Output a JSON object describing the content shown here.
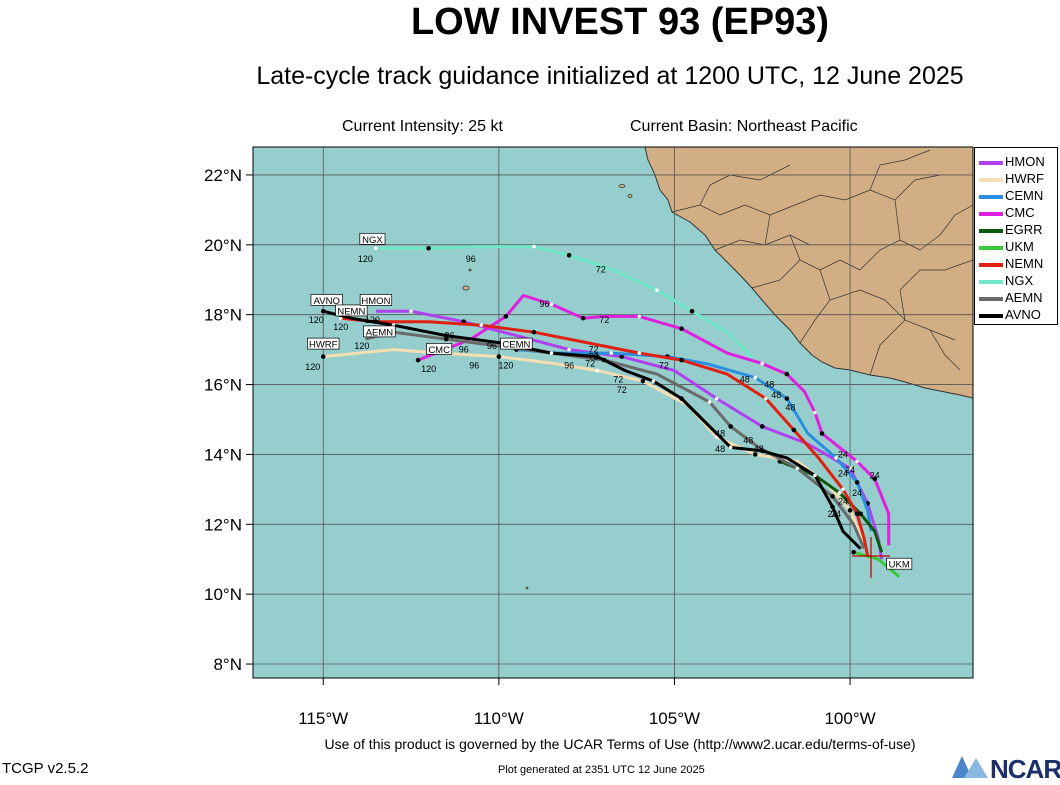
{
  "title": "LOW INVEST 93 (EP93)",
  "subtitle": "Late-cycle track guidance initialized at 1200 UTC, 12 June 2025",
  "info": {
    "intensity": "Current Intensity: 25 kt",
    "basin": "Current Basin: Northeast Pacific"
  },
  "footer": {
    "terms": "Use of this product is governed by the UCAR Terms of Use (http://www2.ucar.edu/terms-of-use)",
    "version": "TCGP v2.5.2",
    "generated": "Plot generated at 2351 UTC   12 June 2025",
    "logo": "NCAR"
  },
  "colors": {
    "ocean": "#96cece",
    "land": "#d2ae85",
    "grid": "#555555"
  },
  "chart_data": {
    "type": "line",
    "xlim": [
      -117,
      -96.5
    ],
    "ylim": [
      7.6,
      22.8
    ],
    "xticks": [
      -115,
      -110,
      -105,
      -100
    ],
    "xtick_labels": [
      "115°W",
      "110°W",
      "105°W",
      "100°W"
    ],
    "yticks": [
      8,
      10,
      12,
      14,
      16,
      18,
      20,
      22
    ],
    "ytick_labels": [
      "8°N",
      "10°N",
      "12°N",
      "14°N",
      "16°N",
      "18°N",
      "20°N",
      "22°N"
    ],
    "grid": true,
    "legend_position": "right",
    "series": [
      {
        "name": "HMON",
        "color": "#b040f0",
        "lon": [
          -99.1,
          -99.2,
          -99.5,
          -100.0,
          -101.2,
          -102.5,
          -103.8,
          -105.0,
          -106.5,
          -108.0,
          -109.5,
          -111.0,
          -112.5,
          -113.5
        ],
        "lat": [
          11.0,
          11.6,
          12.6,
          13.6,
          14.3,
          14.8,
          15.6,
          16.4,
          16.8,
          17.0,
          17.4,
          17.8,
          18.1,
          18.1
        ]
      },
      {
        "name": "HWRF",
        "color": "#f5deb3",
        "lon": [
          -99.6,
          -99.7,
          -100.0,
          -100.6,
          -101.5,
          -102.7,
          -103.8,
          -104.6,
          -105.9,
          -107.2,
          -108.4,
          -110.0,
          -111.7,
          -113.0,
          -115.0
        ],
        "lat": [
          11.3,
          11.7,
          12.4,
          13.1,
          13.8,
          14.0,
          14.5,
          15.4,
          16.1,
          16.4,
          16.6,
          16.8,
          16.9,
          17.0,
          16.8
        ]
      },
      {
        "name": "CEMN",
        "color": "#2a8fe0",
        "lon": [
          -99.4,
          -99.5,
          -99.8,
          -100.4,
          -101.2,
          -101.8,
          -102.7,
          -104.1,
          -105.2,
          -106.8,
          -108.3,
          -109.5
        ],
        "lat": [
          11.8,
          12.4,
          13.2,
          13.9,
          14.6,
          15.6,
          16.2,
          16.6,
          16.8,
          16.9,
          16.9,
          17.0
        ]
      },
      {
        "name": "CMC",
        "color": "#e020e0",
        "lon": [
          -98.9,
          -98.9,
          -99.3,
          -99.8,
          -100.3,
          -100.8,
          -101.0,
          -101.3,
          -101.8,
          -102.5,
          -103.5,
          -104.8,
          -106.0,
          -107.0,
          -107.6,
          -108.5,
          -109.3,
          -109.8,
          -110.8,
          -111.8,
          -112.3
        ],
        "lat": [
          11.4,
          12.3,
          13.3,
          13.8,
          14.2,
          14.6,
          15.2,
          15.8,
          16.3,
          16.6,
          16.9,
          17.6,
          17.95,
          17.95,
          17.9,
          18.3,
          18.55,
          17.95,
          17.3,
          16.9,
          16.7
        ]
      },
      {
        "name": "EGRR",
        "color": "#0a5a0a",
        "lon": [
          -99.1,
          -99.3,
          -99.7,
          -100.3,
          -101.0,
          -102.0
        ],
        "lat": [
          11.2,
          11.8,
          12.3,
          12.9,
          13.4,
          13.8
        ]
      },
      {
        "name": "UKM",
        "color": "#3cc83c",
        "lon": [
          -98.6,
          -99.2,
          -99.9
        ],
        "lat": [
          10.5,
          11.0,
          11.2
        ]
      },
      {
        "name": "NEMN",
        "color": "#e02010",
        "lon": [
          -99.5,
          -99.6,
          -99.8,
          -100.2,
          -100.9,
          -101.6,
          -102.4,
          -103.5,
          -104.8,
          -106.0,
          -107.5,
          -109.0,
          -110.5,
          -112.0,
          -113.5,
          -114.5
        ],
        "lat": [
          11.1,
          11.6,
          12.3,
          13.0,
          13.9,
          14.7,
          15.6,
          16.3,
          16.7,
          16.9,
          17.2,
          17.5,
          17.7,
          17.8,
          17.8,
          17.9
        ]
      },
      {
        "name": "NGX",
        "color": "#70e8c8",
        "lon": [
          -102.8,
          -103.5,
          -104.5,
          -105.5,
          -106.8,
          -108.0,
          -109.0,
          -110.5,
          -112.0,
          -113.5
        ],
        "lat": [
          16.8,
          17.5,
          18.1,
          18.7,
          19.3,
          19.7,
          19.95,
          19.95,
          19.9,
          19.9
        ]
      },
      {
        "name": "AEMN",
        "color": "#6a6a6a",
        "lon": [
          -99.6,
          -99.9,
          -100.5,
          -101.5,
          -102.6,
          -103.4,
          -104.0,
          -105.5,
          -107.0,
          -108.5,
          -110.0,
          -111.5,
          -113.0,
          -113.8
        ],
        "lat": [
          11.3,
          12.0,
          12.8,
          13.6,
          14.2,
          14.8,
          15.5,
          16.3,
          16.7,
          16.9,
          17.1,
          17.3,
          17.5,
          17.3
        ]
      },
      {
        "name": "AVNO",
        "color": "#000000",
        "lon": [
          -99.7,
          -100.2,
          -100.5,
          -101.0,
          -101.8,
          -102.5,
          -103.4,
          -104.0,
          -104.8,
          -105.6,
          -106.4,
          -107.2,
          -108.5,
          -110.0,
          -111.5,
          -113.0,
          -114.2,
          -115.0
        ],
        "lat": [
          11.3,
          11.8,
          12.5,
          13.4,
          13.9,
          14.1,
          14.2,
          14.8,
          15.6,
          16.1,
          16.4,
          16.8,
          16.9,
          17.2,
          17.4,
          17.7,
          17.9,
          18.1
        ]
      }
    ],
    "annotations": [
      {
        "text": "NGX",
        "lon": -113.6,
        "lat": 20.1,
        "box": true
      },
      {
        "text": "AVNO",
        "lon": -114.9,
        "lat": 18.35,
        "box": true
      },
      {
        "text": "NEMN",
        "lon": -114.2,
        "lat": 18.05,
        "box": true
      },
      {
        "text": "HMON",
        "lon": -113.5,
        "lat": 18.35,
        "box": true
      },
      {
        "text": "AEMN",
        "lon": -113.4,
        "lat": 17.45,
        "box": true
      },
      {
        "text": "HWRF",
        "lon": -115.0,
        "lat": 17.1,
        "box": true
      },
      {
        "text": "CMC",
        "lon": -111.7,
        "lat": 16.95,
        "box": true
      },
      {
        "text": "CEMN",
        "lon": -109.5,
        "lat": 17.1,
        "box": true
      },
      {
        "text": "UKM",
        "lon": -98.6,
        "lat": 10.8,
        "box": true
      },
      {
        "text": "120",
        "lon": -113.8,
        "lat": 19.6
      },
      {
        "text": "96",
        "lon": -110.8,
        "lat": 19.6
      },
      {
        "text": "72",
        "lon": -107.1,
        "lat": 19.3
      },
      {
        "text": "120",
        "lon": -115.2,
        "lat": 17.85
      },
      {
        "text": "120",
        "lon": -114.5,
        "lat": 17.65
      },
      {
        "text": "120",
        "lon": -113.9,
        "lat": 17.1
      },
      {
        "text": "120",
        "lon": -115.3,
        "lat": 16.5
      },
      {
        "text": "120",
        "lon": -112.0,
        "lat": 16.45
      },
      {
        "text": "120",
        "lon": -109.8,
        "lat": 16.55
      },
      {
        "text": "120",
        "lon": -113.6,
        "lat": 17.85
      },
      {
        "text": "96",
        "lon": -108.7,
        "lat": 18.3
      },
      {
        "text": "96",
        "lon": -111.4,
        "lat": 17.4
      },
      {
        "text": "96",
        "lon": -111.0,
        "lat": 17.0
      },
      {
        "text": "96",
        "lon": -110.2,
        "lat": 17.1
      },
      {
        "text": "96",
        "lon": -110.7,
        "lat": 16.55
      },
      {
        "text": "96",
        "lon": -108.0,
        "lat": 16.55
      },
      {
        "text": "72",
        "lon": -107.0,
        "lat": 17.85
      },
      {
        "text": "72",
        "lon": -107.3,
        "lat": 17.0
      },
      {
        "text": "72",
        "lon": -107.4,
        "lat": 16.6
      },
      {
        "text": "72",
        "lon": -107.3,
        "lat": 16.8
      },
      {
        "text": "72",
        "lon": -106.6,
        "lat": 16.15
      },
      {
        "text": "72",
        "lon": -106.5,
        "lat": 15.85
      },
      {
        "text": "72",
        "lon": -105.3,
        "lat": 16.55
      },
      {
        "text": "48",
        "lon": -103.0,
        "lat": 16.15
      },
      {
        "text": "48",
        "lon": -102.3,
        "lat": 16.0
      },
      {
        "text": "48",
        "lon": -102.1,
        "lat": 15.7
      },
      {
        "text": "48",
        "lon": -101.7,
        "lat": 15.35
      },
      {
        "text": "48",
        "lon": -103.7,
        "lat": 14.6
      },
      {
        "text": "48",
        "lon": -103.7,
        "lat": 14.15
      },
      {
        "text": "48",
        "lon": -102.9,
        "lat": 14.4
      },
      {
        "text": "48",
        "lon": -102.6,
        "lat": 14.15
      },
      {
        "text": "24",
        "lon": -100.2,
        "lat": 14.0
      },
      {
        "text": "24",
        "lon": -100.0,
        "lat": 13.55
      },
      {
        "text": "24",
        "lon": -100.2,
        "lat": 13.45
      },
      {
        "text": "24",
        "lon": -99.3,
        "lat": 13.4
      },
      {
        "text": "24",
        "lon": -99.8,
        "lat": 12.9
      },
      {
        "text": "24",
        "lon": -100.2,
        "lat": 12.65
      },
      {
        "text": "24",
        "lon": -100.4,
        "lat": 12.3
      },
      {
        "text": "24",
        "lon": -100.5,
        "lat": 12.3
      }
    ]
  }
}
